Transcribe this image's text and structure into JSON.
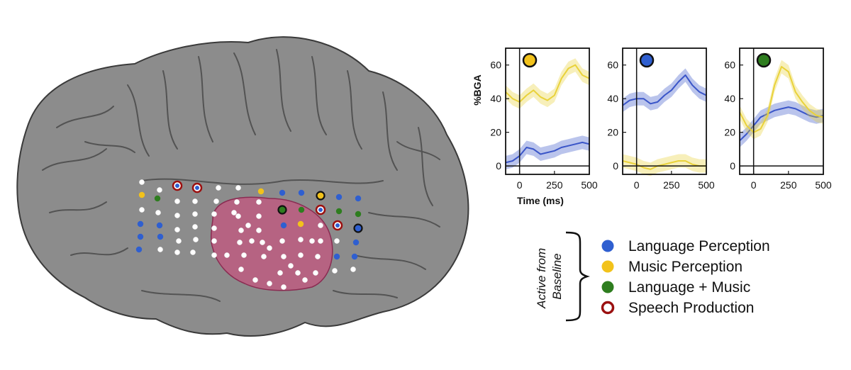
{
  "colors": {
    "language": "#2f5fd0",
    "music": "#f2c21b",
    "both": "#2e7d1f",
    "speech": "#9b1010",
    "white_electrode": "#ffffff",
    "brain": "#8c8c8c",
    "brain_dark": "#4a4a4a",
    "pink_region": "#c4567f",
    "line_blue": "#3a55c8",
    "line_yellow": "#e9d23a"
  },
  "legend": {
    "side_label_line1": "Active from",
    "side_label_line2": "Baseline",
    "items": [
      {
        "label": "Language Perception",
        "color": "#2f5fd0",
        "style": "filled"
      },
      {
        "label": "Music Perception",
        "color": "#f2c21b",
        "style": "filled"
      },
      {
        "label": "Language + Music",
        "color": "#2e7d1f",
        "style": "filled"
      },
      {
        "label": "Speech Production",
        "color": "#9b1010",
        "style": "ring"
      }
    ]
  },
  "chart_data": [
    {
      "type": "line",
      "marker_color": "#f2c21b",
      "ylabel": "%BGA",
      "xlabel": "Time (ms)",
      "xlim": [
        -100,
        500
      ],
      "ylim": [
        -5,
        70
      ],
      "xticks": [
        "0",
        "250",
        "500"
      ],
      "yticks": [
        "0",
        "20",
        "40",
        "60"
      ],
      "x": [
        -100,
        -50,
        0,
        50,
        100,
        150,
        200,
        250,
        300,
        350,
        400,
        450,
        500
      ],
      "series": [
        {
          "values": [
            44,
            40,
            38,
            42,
            45,
            41,
            39,
            42,
            52,
            58,
            60,
            54,
            52
          ],
          "color": "#e9d23a"
        },
        {
          "values": [
            2,
            3,
            6,
            11,
            10,
            7,
            8,
            9,
            11,
            12,
            13,
            14,
            13
          ],
          "color": "#3a55c8"
        }
      ]
    },
    {
      "type": "line",
      "marker_color": "#2f5fd0",
      "xlim": [
        -100,
        500
      ],
      "ylim": [
        -5,
        70
      ],
      "xticks": [
        "0",
        "250",
        "500"
      ],
      "yticks": [
        "0",
        "20",
        "40",
        "60"
      ],
      "x": [
        -100,
        -50,
        0,
        50,
        100,
        150,
        200,
        250,
        300,
        350,
        400,
        450,
        500
      ],
      "series": [
        {
          "values": [
            36,
            39,
            40,
            40,
            37,
            38,
            42,
            45,
            50,
            54,
            48,
            44,
            42
          ],
          "color": "#3a55c8"
        },
        {
          "values": [
            3,
            2,
            1,
            -1,
            -2,
            0,
            1,
            2,
            3,
            3,
            1,
            0,
            0
          ],
          "color": "#e9d23a"
        }
      ]
    },
    {
      "type": "line",
      "marker_color": "#2e7d1f",
      "xlim": [
        -100,
        500
      ],
      "ylim": [
        -5,
        70
      ],
      "xticks": [
        "0",
        "250",
        "500"
      ],
      "yticks": [
        "0",
        "20",
        "40",
        "60"
      ],
      "x": [
        -100,
        -50,
        0,
        50,
        100,
        150,
        200,
        250,
        300,
        350,
        400,
        450,
        500
      ],
      "series": [
        {
          "values": [
            15,
            19,
            24,
            29,
            31,
            33,
            34,
            35,
            34,
            32,
            30,
            29,
            30
          ],
          "color": "#3a55c8"
        },
        {
          "values": [
            32,
            24,
            20,
            22,
            30,
            48,
            59,
            56,
            44,
            38,
            33,
            30,
            29
          ],
          "color": "#e9d23a"
        }
      ]
    }
  ]
}
